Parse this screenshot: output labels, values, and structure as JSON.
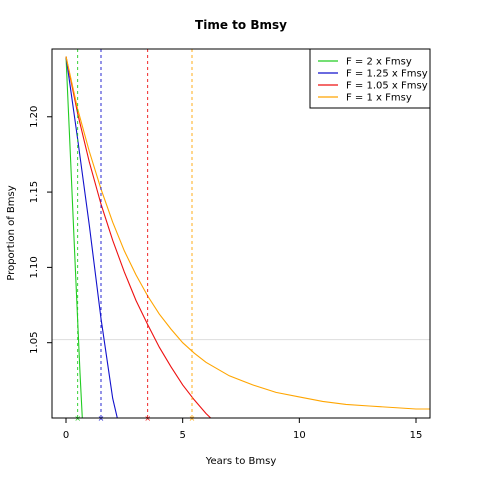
{
  "chart_data": {
    "type": "line",
    "title": "Time to Bmsy",
    "xlabel": "Years to Bmsy",
    "ylabel": "Proportion of Bmsy",
    "xlim": [
      -0.6,
      15.6
    ],
    "ylim": [
      1.0,
      1.245
    ],
    "x_ticks": [
      0,
      5,
      10,
      15
    ],
    "y_ticks": [
      1.05,
      1.1,
      1.15,
      1.2
    ],
    "x_tick_labels": [
      "0",
      "5",
      "10",
      "15"
    ],
    "y_tick_labels": [
      "1.05",
      "1.10",
      "1.15",
      "1.20"
    ],
    "grid": false,
    "reference_line_y": 1.052,
    "reference_line_color": "#dddddd",
    "legend_position": "top-right",
    "series": [
      {
        "name": "F = 2 x Fmsy",
        "color": "#22cc22",
        "x": [
          0,
          0.2,
          0.4,
          0.6,
          0.7
        ],
        "y": [
          1.24,
          1.17,
          1.1,
          1.03,
          1.0
        ],
        "cross_x": 0.5
      },
      {
        "name": "F = 1.25 x Fmsy",
        "color": "#1111cc",
        "x": [
          0,
          0.5,
          1.0,
          1.5,
          2.0,
          2.2
        ],
        "y": [
          1.24,
          1.185,
          1.128,
          1.066,
          1.013,
          1.0
        ],
        "cross_x": 1.5
      },
      {
        "name": "F = 1.05 x Fmsy",
        "color": "#ee1111",
        "x": [
          0,
          0.5,
          1,
          1.5,
          2,
          2.5,
          3,
          3.5,
          4,
          4.5,
          5,
          5.5,
          6,
          6.2
        ],
        "y": [
          1.24,
          1.202,
          1.17,
          1.142,
          1.118,
          1.097,
          1.078,
          1.062,
          1.047,
          1.034,
          1.022,
          1.012,
          1.003,
          1.0
        ],
        "cross_x": 3.5
      },
      {
        "name": "F = 1 x Fmsy",
        "color": "#ffa500",
        "x": [
          0,
          0.5,
          1,
          1.5,
          2,
          2.5,
          3,
          3.5,
          4,
          4.5,
          5,
          5.5,
          6,
          7,
          8,
          9,
          10,
          11,
          12,
          13,
          14,
          15,
          15.6
        ],
        "y": [
          1.24,
          1.205,
          1.177,
          1.152,
          1.13,
          1.111,
          1.095,
          1.081,
          1.069,
          1.059,
          1.05,
          1.043,
          1.037,
          1.028,
          1.022,
          1.017,
          1.014,
          1.011,
          1.009,
          1.008,
          1.007,
          1.006,
          1.006
        ],
        "cross_x": 5.4
      }
    ]
  }
}
